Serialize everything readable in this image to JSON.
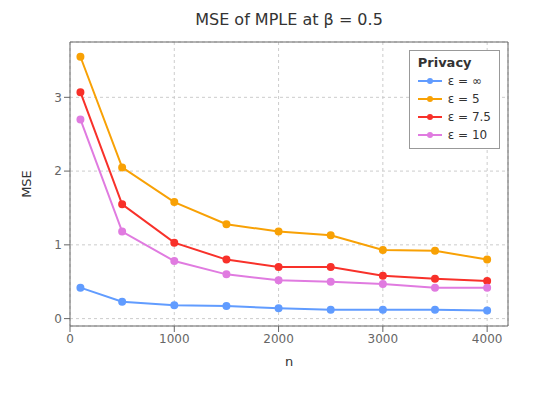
{
  "chart_data": {
    "type": "line",
    "title": "MSE of MPLE at β = 0.5",
    "xlabel": "n",
    "ylabel": "MSE",
    "legend_title": "Privacy",
    "legend": "upper right",
    "grid": true,
    "xlim": [
      0,
      4200
    ],
    "ylim": [
      -0.1,
      3.75
    ],
    "xticks": [
      0,
      1000,
      2000,
      3000,
      4000
    ],
    "yticks": [
      0,
      1,
      2,
      3
    ],
    "x": [
      100,
      500,
      1000,
      1500,
      2000,
      2500,
      3000,
      3500,
      4000
    ],
    "series": [
      {
        "name": "ε = ∞",
        "color": "#619CFF",
        "marker": "circle",
        "values": [
          0.42,
          0.23,
          0.18,
          0.17,
          0.14,
          0.12,
          0.12,
          0.12,
          0.11
        ]
      },
      {
        "name": "ε = 5",
        "color": "#F8A105",
        "marker": "circle",
        "values": [
          3.55,
          2.05,
          1.58,
          1.28,
          1.18,
          1.13,
          0.93,
          0.92,
          0.8
        ]
      },
      {
        "name": "ε = 7.5",
        "color": "#F8312A",
        "marker": "circle",
        "values": [
          3.07,
          1.55,
          1.03,
          0.8,
          0.7,
          0.7,
          0.58,
          0.54,
          0.51
        ]
      },
      {
        "name": "ε = 10",
        "color": "#E07BE0",
        "marker": "circle",
        "values": [
          2.7,
          1.18,
          0.78,
          0.6,
          0.52,
          0.5,
          0.47,
          0.42,
          0.42
        ]
      }
    ]
  }
}
